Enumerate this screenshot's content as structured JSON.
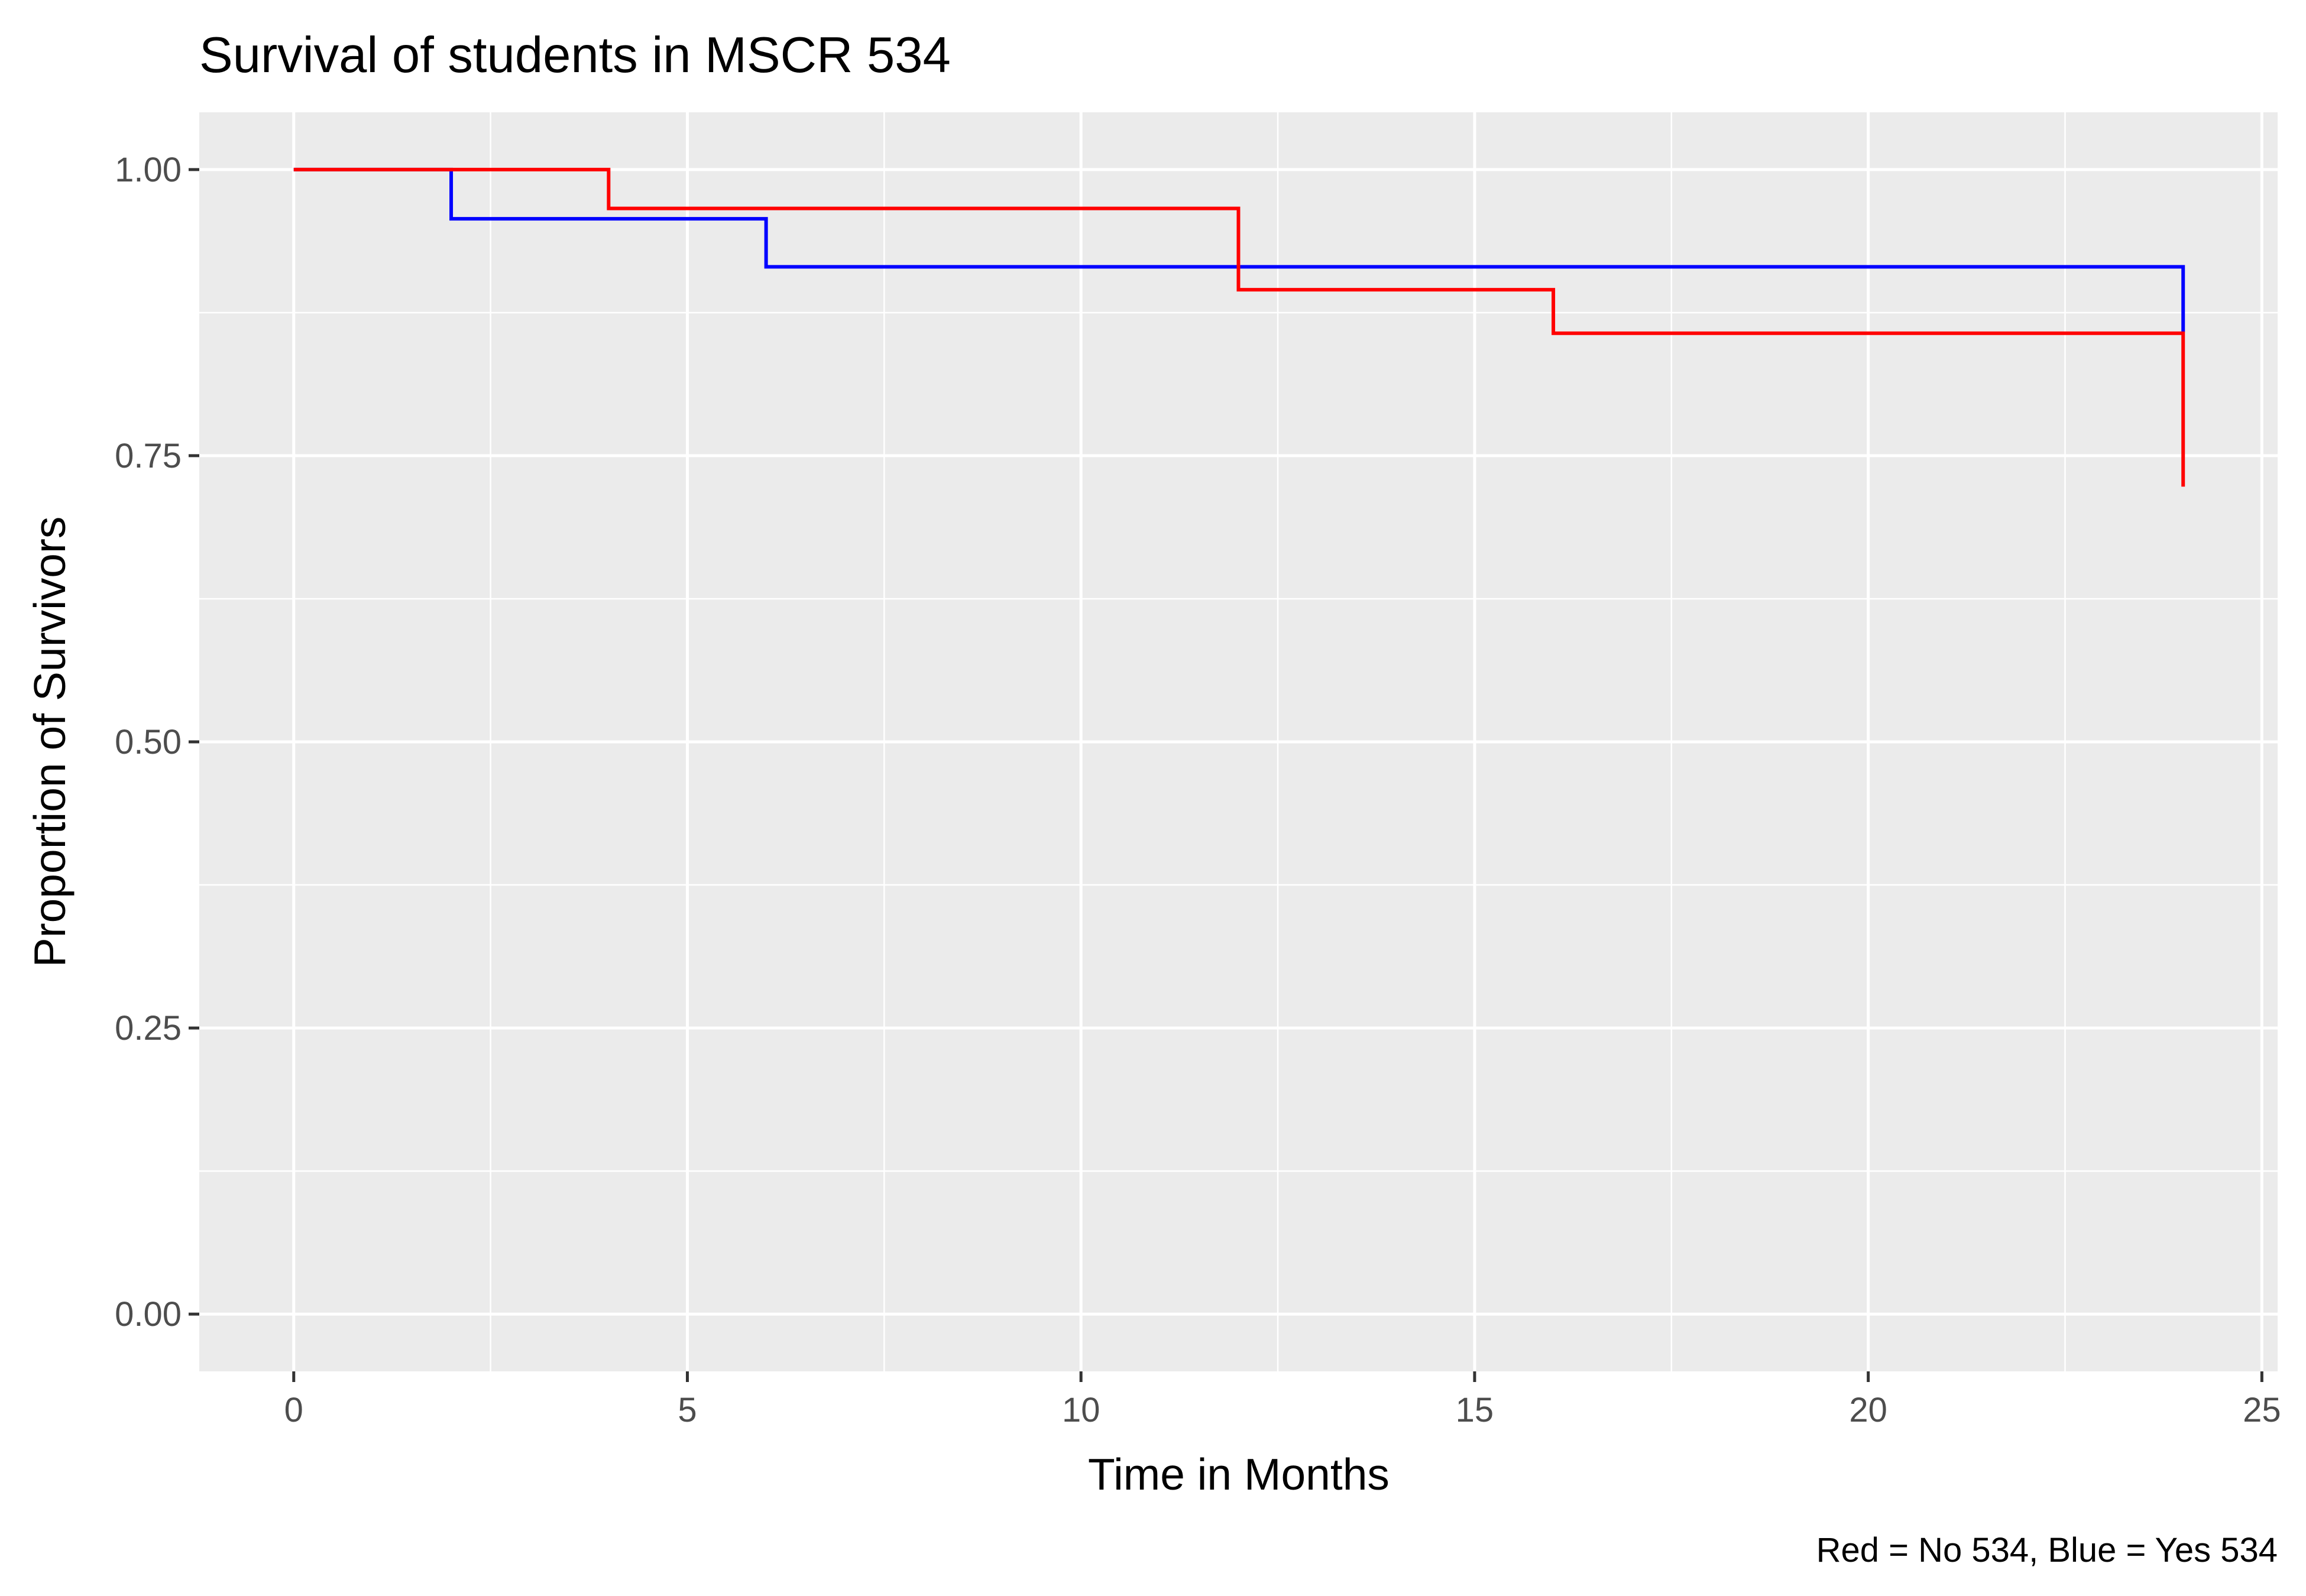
{
  "chart_data": {
    "type": "line",
    "step": true,
    "title": "Survival of students in MSCR 534",
    "xlabel": "Time in Months",
    "ylabel": "Proportion of Survivors",
    "caption": "Red = No 534, Blue = Yes 534",
    "xlim": [
      -1.2,
      25.2
    ],
    "ylim": [
      -0.05,
      1.05
    ],
    "x_ticks": [
      0,
      5,
      10,
      15,
      20,
      25
    ],
    "x_tick_labels": [
      "0",
      "5",
      "10",
      "15",
      "20",
      "25"
    ],
    "y_ticks": [
      0,
      0.25,
      0.5,
      0.75,
      1.0
    ],
    "y_tick_labels": [
      "0.00",
      "0.25",
      "0.50",
      "0.75",
      "1.00"
    ],
    "grid": true,
    "legend": "none",
    "series": [
      {
        "color": "#0000ff",
        "x": [
          0,
          2,
          6,
          24,
          24
        ],
        "y": [
          1.0,
          0.957,
          0.915,
          0.915,
          0.858
        ]
      },
      {
        "color": "#ff0000",
        "x": [
          0,
          4,
          12,
          16,
          24,
          24
        ],
        "y": [
          1.0,
          0.966,
          0.895,
          0.857,
          0.857,
          0.723
        ]
      }
    ],
    "panel_background": "#ebebeb",
    "grid_color": "#ffffff"
  }
}
